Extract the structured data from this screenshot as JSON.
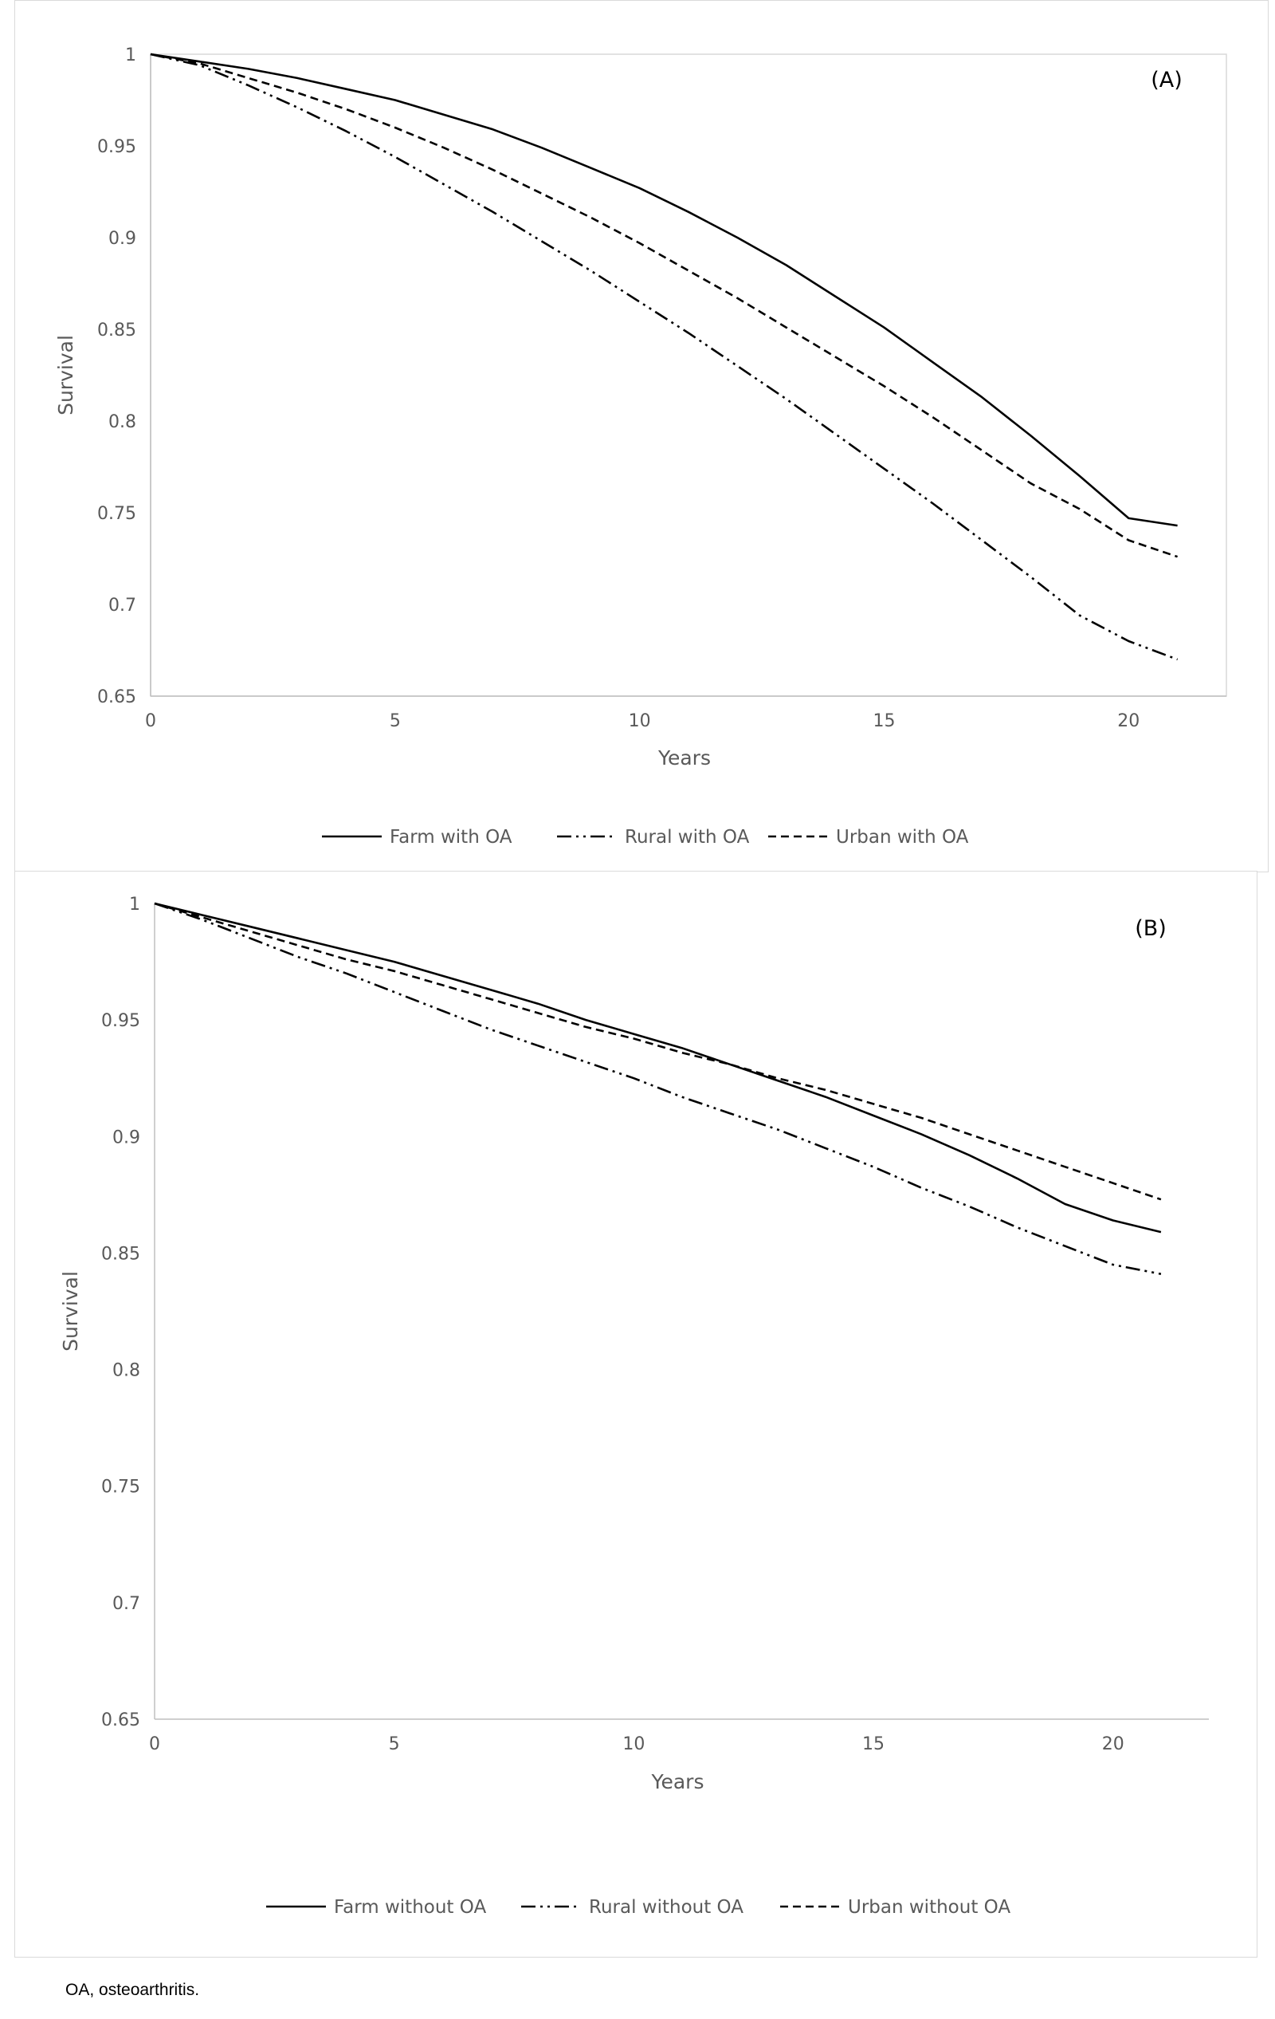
{
  "caption": "OA, osteoarthritis.",
  "colors": {
    "line": "#000000",
    "axis": "#bfbfbf",
    "text": "#595959"
  },
  "chart_data": [
    {
      "type": "line",
      "panel_label": "(A)",
      "xlabel": "Years",
      "ylabel": "Survival",
      "xlim": [
        0,
        22
      ],
      "ylim": [
        0.65,
        1
      ],
      "xticks": [
        0,
        5,
        10,
        15,
        20
      ],
      "yticks": [
        0.65,
        0.7,
        0.75,
        0.8,
        0.85,
        0.9,
        0.95,
        1
      ],
      "ytick_labels": [
        "0.65",
        "0.7",
        "0.75",
        "0.8",
        "0.85",
        "0.9",
        "0.95",
        "1"
      ],
      "legend_position": "bottom",
      "series": [
        {
          "name": "Farm with OA",
          "dash": "solid",
          "x": [
            0,
            1,
            2,
            3,
            4,
            5,
            6,
            7,
            8,
            9,
            10,
            11,
            12,
            13,
            14,
            15,
            16,
            17,
            18,
            19,
            20,
            21
          ],
          "y": [
            1.0,
            0.996,
            0.992,
            0.987,
            0.981,
            0.975,
            0.967,
            0.959,
            0.949,
            0.938,
            0.927,
            0.914,
            0.9,
            0.885,
            0.868,
            0.851,
            0.832,
            0.813,
            0.792,
            0.77,
            0.747,
            0.743
          ]
        },
        {
          "name": "Rural with OA",
          "dash": "dash-dot-dot",
          "x": [
            0,
            1,
            2,
            3,
            4,
            5,
            6,
            7,
            8,
            9,
            10,
            11,
            12,
            13,
            14,
            15,
            16,
            17,
            18,
            19,
            20,
            21
          ],
          "y": [
            1.0,
            0.994,
            0.983,
            0.971,
            0.958,
            0.944,
            0.929,
            0.914,
            0.898,
            0.882,
            0.865,
            0.848,
            0.83,
            0.812,
            0.793,
            0.774,
            0.755,
            0.735,
            0.715,
            0.694,
            0.68,
            0.67
          ]
        },
        {
          "name": "Urban with OA",
          "dash": "dashed",
          "x": [
            0,
            1,
            2,
            3,
            4,
            5,
            6,
            7,
            8,
            9,
            10,
            11,
            12,
            13,
            14,
            15,
            16,
            17,
            18,
            19,
            20,
            21
          ],
          "y": [
            1.0,
            0.995,
            0.987,
            0.979,
            0.97,
            0.96,
            0.949,
            0.937,
            0.924,
            0.911,
            0.897,
            0.882,
            0.867,
            0.851,
            0.835,
            0.819,
            0.802,
            0.784,
            0.766,
            0.752,
            0.735,
            0.726
          ]
        }
      ]
    },
    {
      "type": "line",
      "panel_label": "(B)",
      "xlabel": "Years",
      "ylabel": "Survival",
      "xlim": [
        0,
        22
      ],
      "ylim": [
        0.65,
        1
      ],
      "xticks": [
        0,
        5,
        10,
        15,
        20
      ],
      "yticks": [
        0.65,
        0.7,
        0.75,
        0.8,
        0.85,
        0.9,
        0.95,
        1
      ],
      "ytick_labels": [
        "0.65",
        "0.7",
        "0.75",
        "0.8",
        "0.85",
        "0.9",
        "0.95",
        "1"
      ],
      "legend_position": "bottom",
      "series": [
        {
          "name": "Farm without OA",
          "dash": "solid",
          "x": [
            0,
            1,
            2,
            3,
            4,
            5,
            6,
            7,
            8,
            9,
            10,
            11,
            12,
            13,
            14,
            15,
            16,
            17,
            18,
            19,
            20,
            21
          ],
          "y": [
            1.0,
            0.995,
            0.99,
            0.985,
            0.98,
            0.975,
            0.969,
            0.963,
            0.957,
            0.95,
            0.944,
            0.938,
            0.931,
            0.924,
            0.917,
            0.909,
            0.901,
            0.892,
            0.882,
            0.871,
            0.864,
            0.859
          ]
        },
        {
          "name": "Rural without OA",
          "dash": "dash-dot-dot",
          "x": [
            0,
            1,
            2,
            3,
            4,
            5,
            6,
            7,
            8,
            9,
            10,
            11,
            12,
            13,
            14,
            15,
            16,
            17,
            18,
            19,
            20,
            21
          ],
          "y": [
            1.0,
            0.993,
            0.985,
            0.977,
            0.97,
            0.962,
            0.954,
            0.946,
            0.939,
            0.932,
            0.925,
            0.917,
            0.91,
            0.903,
            0.895,
            0.887,
            0.878,
            0.87,
            0.861,
            0.853,
            0.845,
            0.841
          ]
        },
        {
          "name": "Urban without OA",
          "dash": "dashed",
          "x": [
            0,
            1,
            2,
            3,
            4,
            5,
            6,
            7,
            8,
            9,
            10,
            11,
            12,
            13,
            14,
            15,
            16,
            17,
            18,
            19,
            20,
            21
          ],
          "y": [
            1.0,
            0.994,
            0.988,
            0.982,
            0.976,
            0.971,
            0.965,
            0.959,
            0.953,
            0.947,
            0.942,
            0.936,
            0.931,
            0.925,
            0.92,
            0.914,
            0.908,
            0.901,
            0.894,
            0.887,
            0.88,
            0.873
          ]
        }
      ]
    }
  ]
}
